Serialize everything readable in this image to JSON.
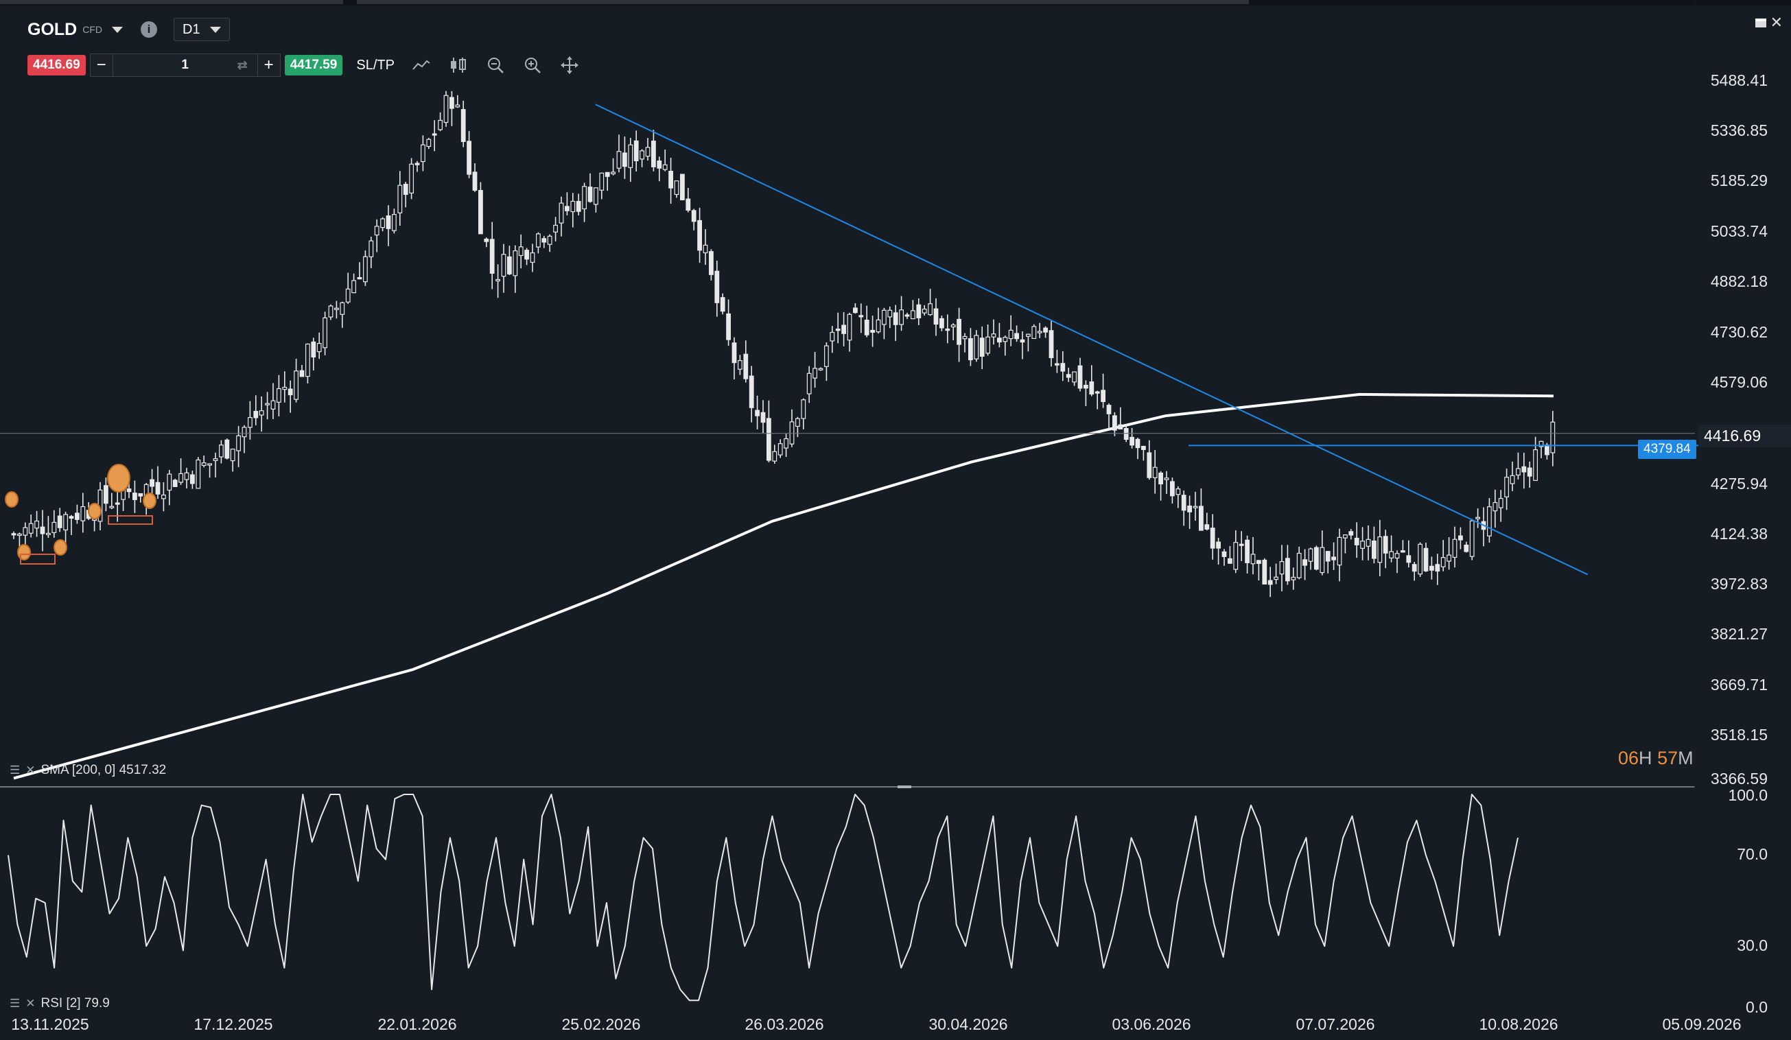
{
  "header": {
    "symbol": "GOLD",
    "instrument_type": "CFD",
    "timeframe": "D1"
  },
  "order": {
    "sell_price": "4416.69",
    "quantity": "1",
    "buy_price": "4417.59",
    "sltp_label": "SL/TP",
    "minus_label": "−",
    "plus_label": "+"
  },
  "price_axis": [
    "5488.41",
    "5336.85",
    "5185.29",
    "5033.74",
    "4882.18",
    "4730.62",
    "4579.06",
    "4275.94",
    "4124.38",
    "3972.83",
    "3821.27",
    "3669.71",
    "3518.15",
    "3366.59"
  ],
  "last_price": "4416.69",
  "horizontal_line_price": "4379.84",
  "countdown": {
    "hours": "06",
    "h_unit": "H",
    "minutes": "57",
    "m_unit": "M"
  },
  "rsi_axis": [
    "100.0",
    "70.0",
    "30.0",
    "0.0"
  ],
  "date_axis": [
    "13.11.2025",
    "17.12.2025",
    "22.01.2026",
    "25.02.2026",
    "26.03.2026",
    "30.04.2026",
    "03.06.2026",
    "07.07.2026",
    "10.08.2026",
    "05.09.2026"
  ],
  "indicators": {
    "sma_label": "SMA [200, 0] 4517.32",
    "rsi_label": "RSI [2] 79.9"
  },
  "colors": {
    "background": "#161c24",
    "candle": "#e8e8e8",
    "sma": "#ffffff",
    "trendline": "#1e88e5",
    "sell": "#e0434d",
    "buy": "#26a46a",
    "countdown": "#f0913a"
  },
  "chart_data": [
    {
      "type": "candlestick",
      "title": "GOLD CFD D1",
      "ylim": [
        3366.59,
        5488.41
      ],
      "x_ticks": [
        "13.11.2025",
        "17.12.2025",
        "22.01.2026",
        "25.02.2026",
        "26.03.2026",
        "30.04.2026",
        "03.06.2026",
        "07.07.2026",
        "10.08.2026",
        "05.09.2026"
      ],
      "close_path": [
        [
          "13.11.2025",
          4110
        ],
        [
          "17.12.2025",
          4320
        ],
        [
          "02.01.2026",
          4600
        ],
        [
          "22.01.2026",
          5200
        ],
        [
          "29.01.2026",
          5450
        ],
        [
          "05.02.2026",
          4900
        ],
        [
          "25.02.2026",
          5200
        ],
        [
          "04.03.2026",
          5300
        ],
        [
          "12.03.2026",
          5100
        ],
        [
          "18.03.2026",
          4700
        ],
        [
          "26.03.2026",
          4350
        ],
        [
          "06.04.2026",
          4720
        ],
        [
          "20.04.2026",
          4800
        ],
        [
          "30.04.2026",
          4680
        ],
        [
          "12.05.2026",
          4700
        ],
        [
          "22.05.2026",
          4520
        ],
        [
          "03.06.2026",
          4250
        ],
        [
          "12.06.2026",
          4100
        ],
        [
          "20.06.2026",
          3980
        ],
        [
          "07.07.2026",
          4080
        ],
        [
          "22.07.2026",
          4020
        ],
        [
          "10.08.2026",
          4410
        ]
      ],
      "series": [
        {
          "name": "SMA [200, 0]",
          "last": 4517.32,
          "points": [
            [
              "13.11.2025",
              3370
            ],
            [
              "22.01.2026",
              3700
            ],
            [
              "25.02.2026",
              3930
            ],
            [
              "26.03.2026",
              4150
            ],
            [
              "30.04.2026",
              4330
            ],
            [
              "03.06.2026",
              4470
            ],
            [
              "07.07.2026",
              4535
            ],
            [
              "10.08.2026",
              4530
            ]
          ]
        }
      ],
      "trendlines": [
        {
          "from": [
            "23.02.2026",
            5415
          ],
          "to": [
            "16.08.2026",
            3988
          ]
        },
        {
          "from": [
            "07.06.2026",
            4379.84
          ],
          "to": [
            "05.09.2026",
            4379.84
          ],
          "label": "4379.84"
        }
      ],
      "last_price": 4416.69
    },
    {
      "type": "line",
      "title": "RSI [2]",
      "ylim": [
        0,
        100
      ],
      "y_ticks": [
        100.0,
        70.0,
        30.0,
        0.0
      ],
      "last": 79.9,
      "values": [
        72,
        40,
        25,
        52,
        50,
        20,
        88,
        60,
        55,
        95,
        70,
        45,
        52,
        80,
        62,
        30,
        38,
        62,
        50,
        28,
        80,
        95,
        94,
        78,
        48,
        40,
        30,
        50,
        70,
        40,
        20,
        65,
        100,
        78,
        90,
        100,
        100,
        80,
        60,
        95,
        75,
        70,
        98,
        100,
        100,
        90,
        10,
        55,
        80,
        60,
        20,
        30,
        60,
        80,
        50,
        30,
        70,
        40,
        90,
        100,
        80,
        45,
        60,
        85,
        30,
        50,
        15,
        30,
        60,
        80,
        75,
        40,
        20,
        10,
        5,
        5,
        20,
        60,
        80,
        50,
        30,
        40,
        70,
        90,
        70,
        60,
        50,
        20,
        45,
        60,
        75,
        85,
        100,
        95,
        80,
        60,
        40,
        20,
        30,
        50,
        60,
        80,
        90,
        40,
        30,
        50,
        70,
        90,
        40,
        20,
        60,
        80,
        50,
        40,
        30,
        70,
        90,
        60,
        45,
        20,
        35,
        55,
        80,
        70,
        45,
        30,
        20,
        50,
        70,
        90,
        60,
        40,
        25,
        55,
        80,
        95,
        85,
        50,
        35,
        55,
        70,
        80,
        40,
        30,
        60,
        80,
        90,
        70,
        50,
        40,
        30,
        55,
        78,
        88,
        72,
        60,
        45,
        30,
        70,
        100,
        95,
        70,
        35,
        60,
        80
      ]
    }
  ]
}
